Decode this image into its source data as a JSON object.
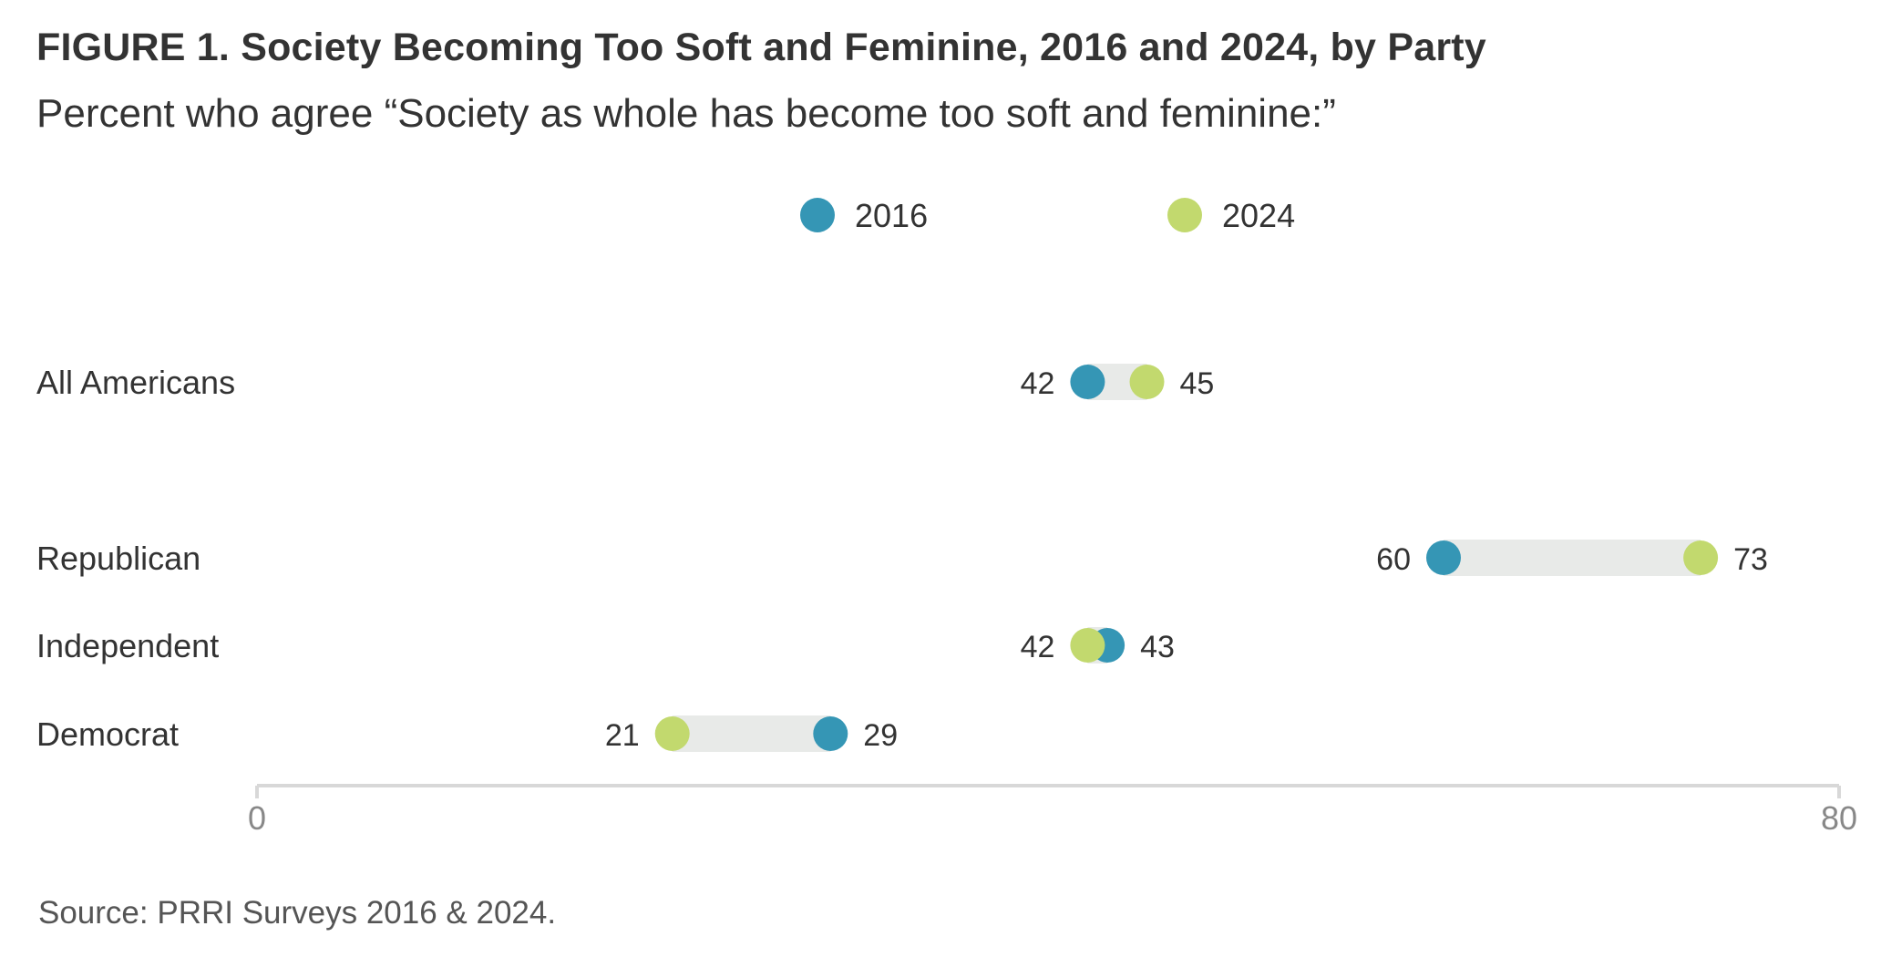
{
  "header": {
    "title": "FIGURE 1.  Society Becoming Too Soft and Feminine, 2016 and 2024, by Party",
    "subtitle": "Percent who agree “Society as whole has become too soft and feminine:”"
  },
  "footer": {
    "source": "Source: PRRI Surveys 2016 & 2024."
  },
  "colors": {
    "series_2016": "#3596b5",
    "series_2024": "#c2d96e",
    "range_bar": "#e8eae8",
    "axis": "#d8d8d8",
    "text": "#333333",
    "tick_text": "#888888"
  },
  "chart_data": {
    "type": "dumbbell",
    "categories": [
      "All Americans",
      "Republican",
      "Independent",
      "Democrat"
    ],
    "series": [
      {
        "name": "2016",
        "values": [
          42,
          60,
          43,
          29
        ]
      },
      {
        "name": "2024",
        "values": [
          45,
          73,
          42,
          21
        ]
      }
    ],
    "xlim": [
      0,
      80
    ],
    "x_ticks": [
      "0",
      "80"
    ],
    "legend": [
      "2016",
      "2024"
    ],
    "legend_position": "top-center",
    "grid": false
  }
}
